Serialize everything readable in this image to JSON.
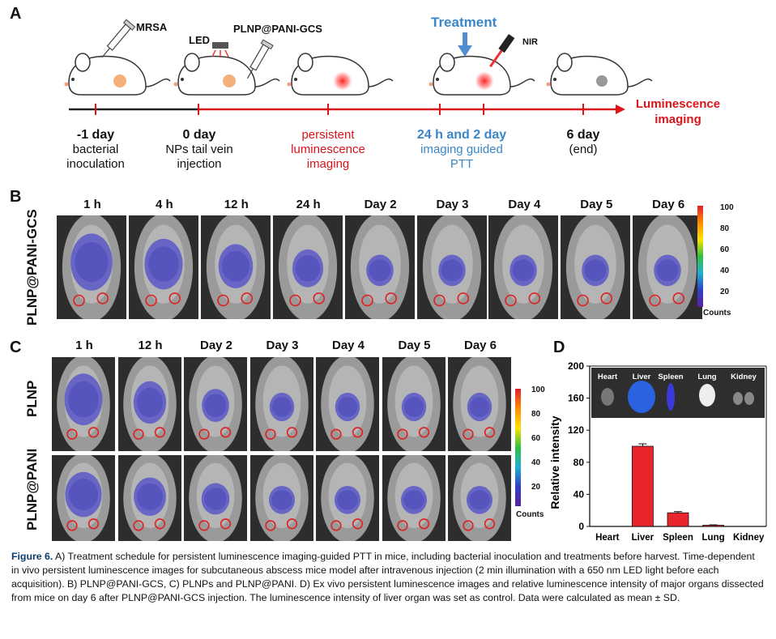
{
  "panels": {
    "a": "A",
    "b": "B",
    "c": "C",
    "d": "D"
  },
  "panel_a": {
    "labels": {
      "mrsa": "MRSA",
      "led": "LED",
      "np": "PLNP@PANI-GCS",
      "treatment": "Treatment",
      "nir": "NIR",
      "end_label": "Luminescence imaging"
    },
    "timeline": [
      {
        "day": "-1 day",
        "desc": "bacterial inoculation"
      },
      {
        "day": "0 day",
        "desc": "NPs tail vein injection"
      },
      {
        "day": "",
        "desc": "persistent luminescence imaging"
      },
      {
        "day": "24 h and 2 day",
        "desc": "imaging guided PTT"
      },
      {
        "day": "6 day",
        "desc": "(end)"
      }
    ]
  },
  "panel_b": {
    "row_label": "PLNP@PANI-GCS",
    "times": [
      "1 h",
      "4 h",
      "12 h",
      "24 h",
      "Day 2",
      "Day 3",
      "Day 4",
      "Day 5",
      "Day 6"
    ],
    "colorbar": {
      "ticks": [
        "100",
        "80",
        "60",
        "40",
        "20"
      ],
      "unit": "Counts"
    }
  },
  "panel_c": {
    "row_labels": [
      "PLNP",
      "PLNP@PANI"
    ],
    "times": [
      "1 h",
      "12 h",
      "Day 2",
      "Day 3",
      "Day 4",
      "Day 5",
      "Day 6"
    ],
    "colorbar": {
      "ticks": [
        "100",
        "80",
        "60",
        "40",
        "20"
      ],
      "unit": "Counts"
    }
  },
  "chart_data": {
    "type": "bar",
    "categories": [
      "Heart",
      "Liver",
      "Spleen",
      "Lung",
      "Kidney"
    ],
    "values": [
      0,
      100,
      17,
      1.5,
      0
    ],
    "errors": [
      0,
      3,
      1.5,
      0.5,
      0
    ],
    "ylabel": "Relative intensity",
    "xlabel": "",
    "ylim": [
      0,
      200
    ],
    "yticks": [
      0,
      40,
      80,
      120,
      160,
      200
    ],
    "bar_color": "#e8252b",
    "inset_labels": [
      "Heart",
      "Liver",
      "Spleen",
      "Lung",
      "Kidney"
    ]
  },
  "caption": {
    "label": "Figure 6.",
    "text": "A) Treatment schedule for persistent luminescence imaging-guided PTT in mice, including bacterial inoculation and treatments before harvest. Time-dependent in vivo persistent luminescence images for subcutaneous abscess mice model after intravenous injection (2 min illumination with a 650 nm LED light before each acquisition). B) PLNP@PANI-GCS, C) PLNPs and PLNP@PANI. D) Ex vivo persistent luminescence images and relative luminescence intensity of major organs dissected from mice on day 6 after PLNP@PANI-GCS injection. The luminescence intensity of liver organ was set as control. Data were calculated as mean ± SD."
  }
}
